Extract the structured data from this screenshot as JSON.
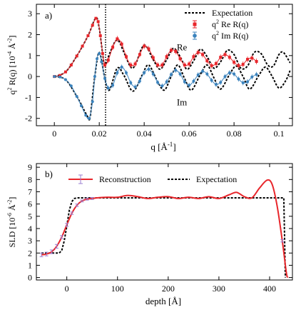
{
  "chart_data": [
    {
      "type": "line",
      "panel_label": "a)",
      "xlabel_main": "q [Å",
      "xlabel_sup": "-1",
      "xlabel_end": "]",
      "ylabel_pre": "q",
      "ylabel_sup1": "2",
      "ylabel_mid": " R(q)  [10",
      "ylabel_sup2": "-4",
      "ylabel_unit": " Å",
      "ylabel_sup3": "-2",
      "ylabel_end": "]",
      "xlim": [
        -0.008,
        0.106
      ],
      "ylim": [
        -2.35,
        3.45
      ],
      "x_ticks": [
        0,
        0.02,
        0.04,
        0.06,
        0.08,
        0.1
      ],
      "x_tick_labels": [
        "0",
        "0.02",
        "0.04",
        "0.06",
        "0.08",
        "0.1"
      ],
      "y_ticks": [
        -2,
        -1,
        0,
        1,
        2,
        3
      ],
      "y_tick_labels": [
        "-2",
        "-1",
        "0",
        "1",
        "2",
        "3"
      ],
      "vline_x": 0.0228,
      "annotations": [
        {
          "text": "Re",
          "x": 0.0545,
          "y": 1.25
        },
        {
          "text": "Im",
          "x": 0.0545,
          "y": -1.38
        }
      ],
      "legend": [
        {
          "label": "Expectation",
          "style": "dashed",
          "color": "#000000"
        },
        {
          "label_pre": "q",
          "label_sup": "2",
          "label_post": " Re R(q)",
          "style": "errorbar-square",
          "color": "#e8262b"
        },
        {
          "label_pre": "q",
          "label_sup": "2",
          "label_post": " Im R(q)",
          "style": "errorbar-circle",
          "color": "#3b83bd"
        }
      ],
      "legend_position": "top-right",
      "grid": false,
      "re_points": [
        [
          0.0,
          0.0
        ],
        [
          0.0025,
          0.05
        ],
        [
          0.005,
          0.22
        ],
        [
          0.0075,
          0.55
        ],
        [
          0.01,
          0.98
        ],
        [
          0.0125,
          1.45
        ],
        [
          0.015,
          1.95
        ],
        [
          0.017,
          2.45
        ],
        [
          0.0185,
          2.78
        ],
        [
          0.0195,
          2.62
        ],
        [
          0.0205,
          1.95
        ],
        [
          0.0215,
          1.1
        ],
        [
          0.0225,
          0.55
        ],
        [
          0.024,
          0.78
        ],
        [
          0.026,
          1.4
        ],
        [
          0.028,
          1.8
        ],
        [
          0.03,
          1.55
        ],
        [
          0.032,
          0.95
        ],
        [
          0.034,
          0.55
        ],
        [
          0.036,
          0.6
        ],
        [
          0.038,
          1.05
        ],
        [
          0.04,
          1.45
        ],
        [
          0.042,
          1.32
        ],
        [
          0.044,
          0.9
        ],
        [
          0.046,
          0.55
        ],
        [
          0.048,
          0.55
        ],
        [
          0.05,
          0.95
        ],
        [
          0.052,
          1.25
        ],
        [
          0.054,
          1.2
        ],
        [
          0.056,
          0.85
        ],
        [
          0.058,
          0.55
        ],
        [
          0.06,
          0.6
        ],
        [
          0.062,
          0.95
        ],
        [
          0.064,
          1.15
        ],
        [
          0.066,
          1.05
        ],
        [
          0.068,
          0.75
        ],
        [
          0.07,
          0.52
        ],
        [
          0.072,
          0.62
        ],
        [
          0.074,
          0.92
        ],
        [
          0.076,
          1.05
        ],
        [
          0.078,
          0.92
        ],
        [
          0.08,
          0.68
        ],
        [
          0.082,
          0.52
        ],
        [
          0.084,
          0.58
        ],
        [
          0.086,
          0.82
        ],
        [
          0.088,
          0.88
        ],
        [
          0.09,
          0.72
        ]
      ],
      "im_points": [
        [
          0.0,
          0.0
        ],
        [
          0.0025,
          -0.02
        ],
        [
          0.005,
          -0.15
        ],
        [
          0.0075,
          -0.45
        ],
        [
          0.01,
          -0.95
        ],
        [
          0.012,
          -1.4
        ],
        [
          0.014,
          -1.85
        ],
        [
          0.0155,
          -2.0
        ],
        [
          0.017,
          -1.2
        ],
        [
          0.018,
          0.0
        ],
        [
          0.019,
          0.85
        ],
        [
          0.02,
          1.1
        ],
        [
          0.021,
          0.7
        ],
        [
          0.0225,
          -0.1
        ],
        [
          0.024,
          -0.55
        ],
        [
          0.026,
          -0.42
        ],
        [
          0.028,
          0.18
        ],
        [
          0.03,
          0.45
        ],
        [
          0.032,
          0.18
        ],
        [
          0.034,
          -0.3
        ],
        [
          0.036,
          -0.5
        ],
        [
          0.038,
          -0.22
        ],
        [
          0.04,
          0.18
        ],
        [
          0.042,
          0.35
        ],
        [
          0.044,
          0.12
        ],
        [
          0.046,
          -0.28
        ],
        [
          0.048,
          -0.45
        ],
        [
          0.05,
          -0.25
        ],
        [
          0.052,
          0.1
        ],
        [
          0.054,
          0.3
        ],
        [
          0.056,
          0.12
        ],
        [
          0.058,
          -0.25
        ],
        [
          0.06,
          -0.42
        ],
        [
          0.062,
          -0.22
        ],
        [
          0.064,
          0.08
        ],
        [
          0.066,
          0.25
        ],
        [
          0.068,
          0.12
        ],
        [
          0.07,
          -0.18
        ],
        [
          0.072,
          -0.38
        ],
        [
          0.074,
          -0.28
        ],
        [
          0.076,
          0.0
        ],
        [
          0.078,
          0.18
        ],
        [
          0.08,
          0.12
        ],
        [
          0.082,
          -0.12
        ],
        [
          0.084,
          -0.3
        ],
        [
          0.086,
          -0.25
        ],
        [
          0.088,
          -0.02
        ],
        [
          0.09,
          0.1
        ]
      ],
      "re_expectation": [
        [
          0.0,
          0.0
        ],
        [
          0.005,
          0.22
        ],
        [
          0.01,
          0.98
        ],
        [
          0.015,
          1.95
        ],
        [
          0.0185,
          2.8
        ],
        [
          0.02,
          2.3
        ],
        [
          0.0215,
          1.1
        ],
        [
          0.0225,
          0.55
        ],
        [
          0.025,
          1.2
        ],
        [
          0.028,
          1.75
        ],
        [
          0.031,
          1.15
        ],
        [
          0.034,
          0.45
        ],
        [
          0.036,
          0.55
        ],
        [
          0.04,
          1.5
        ],
        [
          0.044,
          0.8
        ],
        [
          0.047,
          0.35
        ],
        [
          0.05,
          0.8
        ],
        [
          0.053,
          1.35
        ],
        [
          0.056,
          0.95
        ],
        [
          0.059,
          0.35
        ],
        [
          0.062,
          0.75
        ],
        [
          0.065,
          1.3
        ],
        [
          0.068,
          0.95
        ],
        [
          0.071,
          0.4
        ],
        [
          0.074,
          0.7
        ],
        [
          0.077,
          1.25
        ],
        [
          0.08,
          1.05
        ],
        [
          0.083,
          0.4
        ],
        [
          0.086,
          0.5
        ],
        [
          0.089,
          1.15
        ],
        [
          0.092,
          1.1
        ],
        [
          0.095,
          0.55
        ],
        [
          0.0975,
          0.5
        ],
        [
          0.1,
          1.05
        ],
        [
          0.102,
          1.15
        ],
        [
          0.105,
          0.65
        ]
      ],
      "im_expectation": [
        [
          0.0,
          0.0
        ],
        [
          0.005,
          -0.15
        ],
        [
          0.01,
          -0.95
        ],
        [
          0.015,
          -1.95
        ],
        [
          0.016,
          -1.9
        ],
        [
          0.018,
          0.0
        ],
        [
          0.02,
          1.15
        ],
        [
          0.0225,
          -0.1
        ],
        [
          0.0245,
          -0.65
        ],
        [
          0.028,
          0.4
        ],
        [
          0.031,
          0.05
        ],
        [
          0.035,
          -0.7
        ],
        [
          0.039,
          0.05
        ],
        [
          0.042,
          0.55
        ],
        [
          0.046,
          -0.25
        ],
        [
          0.049,
          -0.65
        ],
        [
          0.052,
          0.0
        ],
        [
          0.055,
          0.55
        ],
        [
          0.058,
          -0.1
        ],
        [
          0.061,
          -0.65
        ],
        [
          0.065,
          0.1
        ],
        [
          0.068,
          0.55
        ],
        [
          0.071,
          -0.05
        ],
        [
          0.074,
          -0.6
        ],
        [
          0.078,
          0.1
        ],
        [
          0.081,
          0.5
        ],
        [
          0.084,
          0.0
        ],
        [
          0.087,
          -0.6
        ],
        [
          0.091,
          0.05
        ],
        [
          0.094,
          0.45
        ],
        [
          0.097,
          0.0
        ],
        [
          0.1,
          -0.55
        ],
        [
          0.103,
          -0.2
        ],
        [
          0.105,
          0.3
        ]
      ]
    },
    {
      "type": "line",
      "panel_label": "b)",
      "xlabel": "depth [Å]",
      "ylabel_pre": "SLD [10",
      "ylabel_sup1": "-6",
      "ylabel_unit": " Å",
      "ylabel_sup2": "-2",
      "ylabel_end": "]",
      "xlim": [
        -60,
        445
      ],
      "ylim": [
        -0.2,
        9.3
      ],
      "x_ticks": [
        0,
        100,
        200,
        300,
        400
      ],
      "x_tick_labels": [
        "0",
        "100",
        "200",
        "300",
        "400"
      ],
      "y_ticks": [
        0,
        1,
        2,
        3,
        4,
        5,
        6,
        7,
        8,
        9
      ],
      "y_tick_labels": [
        "0",
        "1",
        "2",
        "3",
        "4",
        "5",
        "6",
        "7",
        "8",
        "9"
      ],
      "legend": [
        {
          "label": "Reconstruction",
          "style": "line-errorbar",
          "color": "#e8262b"
        },
        {
          "label": "Expectation",
          "style": "dashed",
          "color": "#000000"
        }
      ],
      "legend_position": "top",
      "grid": false,
      "reconstruction": [
        [
          -50,
          1.85
        ],
        [
          -40,
          1.92
        ],
        [
          -30,
          2.1
        ],
        [
          -20,
          2.55
        ],
        [
          -10,
          3.3
        ],
        [
          0,
          4.3
        ],
        [
          10,
          5.25
        ],
        [
          20,
          5.9
        ],
        [
          30,
          6.25
        ],
        [
          40,
          6.4
        ],
        [
          50,
          6.45
        ],
        [
          60,
          6.5
        ],
        [
          80,
          6.55
        ],
        [
          100,
          6.55
        ],
        [
          120,
          6.7
        ],
        [
          140,
          6.6
        ],
        [
          160,
          6.45
        ],
        [
          180,
          6.55
        ],
        [
          200,
          6.6
        ],
        [
          220,
          6.45
        ],
        [
          240,
          6.55
        ],
        [
          260,
          6.45
        ],
        [
          280,
          6.6
        ],
        [
          300,
          6.45
        ],
        [
          320,
          6.75
        ],
        [
          335,
          6.95
        ],
        [
          350,
          6.6
        ],
        [
          365,
          6.5
        ],
        [
          380,
          7.3
        ],
        [
          395,
          7.95
        ],
        [
          405,
          7.6
        ],
        [
          415,
          5.8
        ],
        [
          425,
          3.0
        ],
        [
          433,
          0.4
        ],
        [
          436,
          0.0
        ]
      ],
      "reconstruction_errorbars": [
        [
          -50,
          1.85,
          0.15
        ],
        [
          -40,
          1.92,
          0.15
        ],
        [
          -30,
          2.1,
          0.15
        ],
        [
          -20,
          2.55,
          0.15
        ],
        [
          -10,
          3.3,
          0.12
        ],
        [
          0,
          4.3,
          0.12
        ],
        [
          10,
          5.25,
          0.1
        ],
        [
          20,
          5.9,
          0.1
        ],
        [
          30,
          6.25,
          0.08
        ],
        [
          40,
          6.4,
          0.08
        ],
        [
          50,
          6.45,
          0.08
        ],
        [
          425,
          3.0,
          0.1
        ]
      ],
      "expectation": [
        [
          -50,
          2.0
        ],
        [
          -15,
          2.0
        ],
        [
          -10,
          2.2
        ],
        [
          -5,
          3.0
        ],
        [
          0,
          4.2
        ],
        [
          5,
          5.5
        ],
        [
          10,
          6.2
        ],
        [
          15,
          6.45
        ],
        [
          20,
          6.5
        ],
        [
          428,
          6.5
        ],
        [
          431,
          0.0
        ]
      ]
    }
  ]
}
